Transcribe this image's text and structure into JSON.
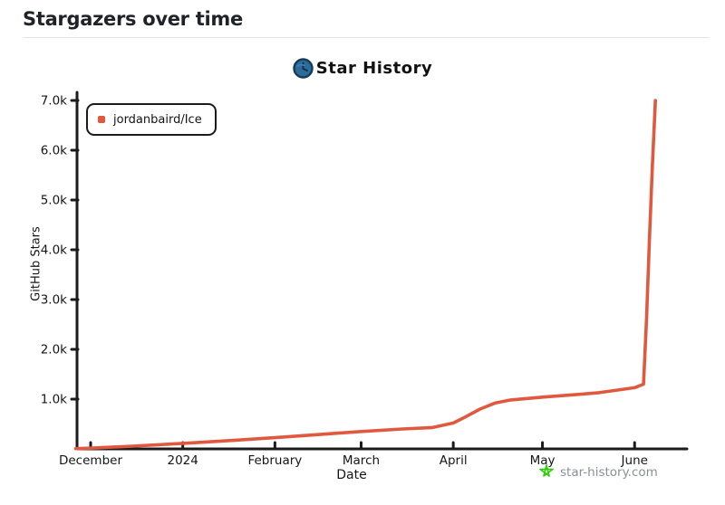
{
  "page": {
    "title": "Stargazers over time"
  },
  "chart_header": {
    "logo_icon": "star-history-logo-icon",
    "title": "Star History"
  },
  "legend": {
    "series_label": "jordanbaird/Ice",
    "marker_color": "#e0593f"
  },
  "watermark": {
    "icon": "green-star-icon",
    "icon_color": "#35cc0e",
    "text": "star-history.com"
  },
  "colors": {
    "line": "#e0593f",
    "axis": "#1b1b1b",
    "tick_text": "#161616",
    "logo_circle": "#2d6b9b",
    "logo_circle_dark": "#173a56"
  },
  "chart_data": {
    "type": "line",
    "title": "Star History",
    "xlabel": "Date",
    "ylabel": "GitHub Stars",
    "legend_position": "top-left",
    "grid": false,
    "ylim": [
      0,
      7000
    ],
    "x_range": [
      "2023-11-26",
      "2024-06-18"
    ],
    "x_ticks": [
      {
        "label": "December",
        "date": "2023-12-01"
      },
      {
        "label": "2024",
        "date": "2024-01-01"
      },
      {
        "label": "February",
        "date": "2024-02-01"
      },
      {
        "label": "March",
        "date": "2024-03-01"
      },
      {
        "label": "April",
        "date": "2024-04-01"
      },
      {
        "label": "May",
        "date": "2024-05-01"
      },
      {
        "label": "June",
        "date": "2024-06-01"
      }
    ],
    "y_ticks": [
      {
        "label": "1.0k",
        "value": 1000
      },
      {
        "label": "2.0k",
        "value": 2000
      },
      {
        "label": "3.0k",
        "value": 3000
      },
      {
        "label": "4.0k",
        "value": 4000
      },
      {
        "label": "5.0k",
        "value": 5000
      },
      {
        "label": "6.0k",
        "value": 6000
      },
      {
        "label": "7.0k",
        "value": 7000
      }
    ],
    "series": [
      {
        "name": "jordanbaird/Ice",
        "color": "#e0593f",
        "points": [
          [
            "2023-11-26",
            5
          ],
          [
            "2023-12-01",
            15
          ],
          [
            "2023-12-15",
            55
          ],
          [
            "2024-01-01",
            110
          ],
          [
            "2024-01-15",
            160
          ],
          [
            "2024-02-01",
            225
          ],
          [
            "2024-02-15",
            285
          ],
          [
            "2024-03-01",
            350
          ],
          [
            "2024-03-15",
            400
          ],
          [
            "2024-03-25",
            430
          ],
          [
            "2024-04-01",
            520
          ],
          [
            "2024-04-05",
            640
          ],
          [
            "2024-04-10",
            800
          ],
          [
            "2024-04-15",
            920
          ],
          [
            "2024-04-20",
            980
          ],
          [
            "2024-05-01",
            1040
          ],
          [
            "2024-05-10",
            1080
          ],
          [
            "2024-05-20",
            1130
          ],
          [
            "2024-06-01",
            1230
          ],
          [
            "2024-06-04",
            1300
          ],
          [
            "2024-06-05",
            2600
          ],
          [
            "2024-06-06",
            4200
          ],
          [
            "2024-06-07",
            5700
          ],
          [
            "2024-06-08",
            7000
          ]
        ]
      }
    ]
  }
}
